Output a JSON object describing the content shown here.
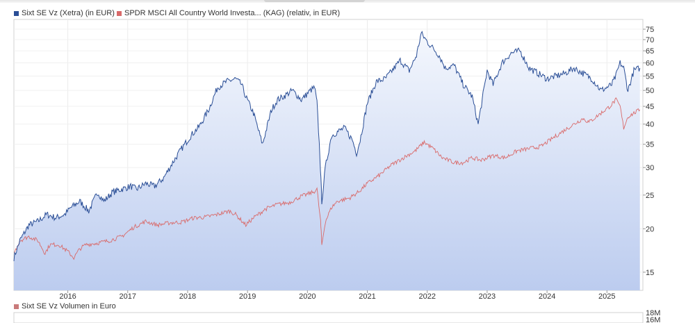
{
  "legend": {
    "series1": {
      "label": "Sixt SE Vz (Xetra) (in EUR)",
      "color": "#2a4e96"
    },
    "series2": {
      "label": "SPDR MSCI All Country World Investa... (KAG) (relativ, in EUR)",
      "color": "#d96a6a"
    },
    "volume": {
      "label": "Sixt SE Vz Volumen in Euro",
      "color": "#c97a7a"
    }
  },
  "chart_data": [
    {
      "type": "line",
      "title": "",
      "yscale": "log",
      "xlim": [
        2015.1,
        2025.6
      ],
      "ylim": [
        13.3,
        80
      ],
      "x_ticks": [
        2016,
        2017,
        2018,
        2019,
        2020,
        2021,
        2022,
        2023,
        2024,
        2025
      ],
      "x_tick_labels": [
        "2016",
        "2017",
        "2018",
        "2019",
        "2020",
        "2021",
        "2022",
        "2023",
        "2024",
        "2025"
      ],
      "y_ticks": [
        15,
        20,
        25,
        30,
        35,
        40,
        45,
        50,
        55,
        60,
        65,
        70,
        75
      ],
      "y_tick_labels": [
        "15",
        "20",
        "25",
        "30",
        "35",
        "40",
        "45",
        "50",
        "55",
        "60",
        "65",
        "70",
        "75"
      ],
      "series": [
        {
          "name": "Sixt SE Vz (Xetra) (in EUR)",
          "color": "#2a4e96",
          "fill": true,
          "x": [
            2015.1,
            2015.2,
            2015.35,
            2015.5,
            2015.65,
            2015.8,
            2015.95,
            2016.05,
            2016.2,
            2016.35,
            2016.5,
            2016.6,
            2016.75,
            2016.9,
            2017.05,
            2017.15,
            2017.3,
            2017.45,
            2017.6,
            2017.75,
            2017.9,
            2018.05,
            2018.2,
            2018.35,
            2018.5,
            2018.65,
            2018.8,
            2018.9,
            2018.97,
            2019.1,
            2019.25,
            2019.4,
            2019.5,
            2019.6,
            2019.75,
            2019.9,
            2020.05,
            2020.12,
            2020.16,
            2020.21,
            2020.24,
            2020.3,
            2020.4,
            2020.5,
            2020.62,
            2020.75,
            2020.82,
            2020.88,
            2021.0,
            2021.15,
            2021.3,
            2021.45,
            2021.55,
            2021.7,
            2021.82,
            2021.9,
            2022.0,
            2022.1,
            2022.2,
            2022.3,
            2022.45,
            2022.6,
            2022.75,
            2022.85,
            2023.0,
            2023.1,
            2023.25,
            2023.4,
            2023.55,
            2023.7,
            2023.85,
            2024.0,
            2024.15,
            2024.3,
            2024.45,
            2024.6,
            2024.75,
            2024.9,
            2025.0,
            2025.08,
            2025.15,
            2025.22,
            2025.28,
            2025.35,
            2025.45,
            2025.55
          ],
          "values": [
            16.5,
            18.5,
            20.5,
            21.0,
            22.0,
            21.5,
            22.0,
            23.0,
            24.0,
            22.5,
            25.5,
            24.0,
            25.5,
            26.0,
            26.5,
            26.0,
            27.0,
            26.5,
            28.0,
            31.0,
            34.0,
            37.0,
            39.5,
            44.0,
            51.0,
            53.0,
            54.0,
            52.0,
            48.0,
            43.0,
            35.0,
            44.0,
            47.0,
            48.0,
            50.0,
            47.0,
            50.0,
            51.0,
            46.0,
            32.0,
            24.0,
            30.0,
            37.0,
            38.0,
            39.0,
            36.0,
            33.0,
            36.0,
            46.0,
            53.0,
            54.0,
            58.0,
            61.0,
            57.0,
            63.0,
            73.0,
            69.0,
            66.0,
            63.0,
            58.0,
            59.0,
            52.0,
            48.0,
            40.0,
            57.0,
            52.0,
            60.0,
            64.0,
            65.0,
            58.0,
            56.0,
            54.0,
            55.0,
            56.0,
            58.0,
            56.0,
            54.0,
            50.0,
            51.0,
            52.0,
            55.0,
            60.0,
            58.0,
            50.0,
            57.0,
            58.0
          ]
        },
        {
          "name": "SPDR MSCI All Country World Investa... (KAG) (relativ, in EUR)",
          "color": "#d96a6a",
          "fill": false,
          "x": [
            2015.1,
            2015.2,
            2015.35,
            2015.5,
            2015.62,
            2015.7,
            2015.85,
            2016.0,
            2016.1,
            2016.2,
            2016.3,
            2016.5,
            2016.7,
            2016.9,
            2017.1,
            2017.3,
            2017.5,
            2017.7,
            2017.9,
            2018.1,
            2018.3,
            2018.5,
            2018.7,
            2018.8,
            2018.97,
            2019.1,
            2019.3,
            2019.5,
            2019.7,
            2019.9,
            2020.1,
            2020.16,
            2020.22,
            2020.24,
            2020.3,
            2020.4,
            2020.5,
            2020.7,
            2020.85,
            2021.0,
            2021.2,
            2021.4,
            2021.6,
            2021.8,
            2021.95,
            2022.1,
            2022.25,
            2022.45,
            2022.6,
            2022.75,
            2022.9,
            2023.1,
            2023.3,
            2023.5,
            2023.7,
            2023.9,
            2024.1,
            2024.3,
            2024.5,
            2024.6,
            2024.7,
            2024.9,
            2025.05,
            2025.15,
            2025.22,
            2025.28,
            2025.35,
            2025.45,
            2025.55
          ],
          "values": [
            17.0,
            18.5,
            19.0,
            18.5,
            17.0,
            18.0,
            18.0,
            17.2,
            16.5,
            17.5,
            18.0,
            18.2,
            18.5,
            19.0,
            20.2,
            21.0,
            20.5,
            20.8,
            20.9,
            21.5,
            21.6,
            22.0,
            22.5,
            22.0,
            20.5,
            21.5,
            22.8,
            23.5,
            23.8,
            24.8,
            25.5,
            26.0,
            21.0,
            18.0,
            21.0,
            23.0,
            24.0,
            24.5,
            25.5,
            27.0,
            28.5,
            30.5,
            32.0,
            33.5,
            35.5,
            34.0,
            32.0,
            31.0,
            31.0,
            32.0,
            31.5,
            32.5,
            32.0,
            33.5,
            34.0,
            34.5,
            36.5,
            38.5,
            40.5,
            41.5,
            40.5,
            43.0,
            45.0,
            47.0,
            45.0,
            39.0,
            42.0,
            43.0,
            44.0
          ]
        }
      ]
    },
    {
      "type": "bar",
      "title": "Sixt SE Vz Volumen in Euro",
      "y_tick_labels": [
        "18M",
        "16M"
      ]
    }
  ]
}
